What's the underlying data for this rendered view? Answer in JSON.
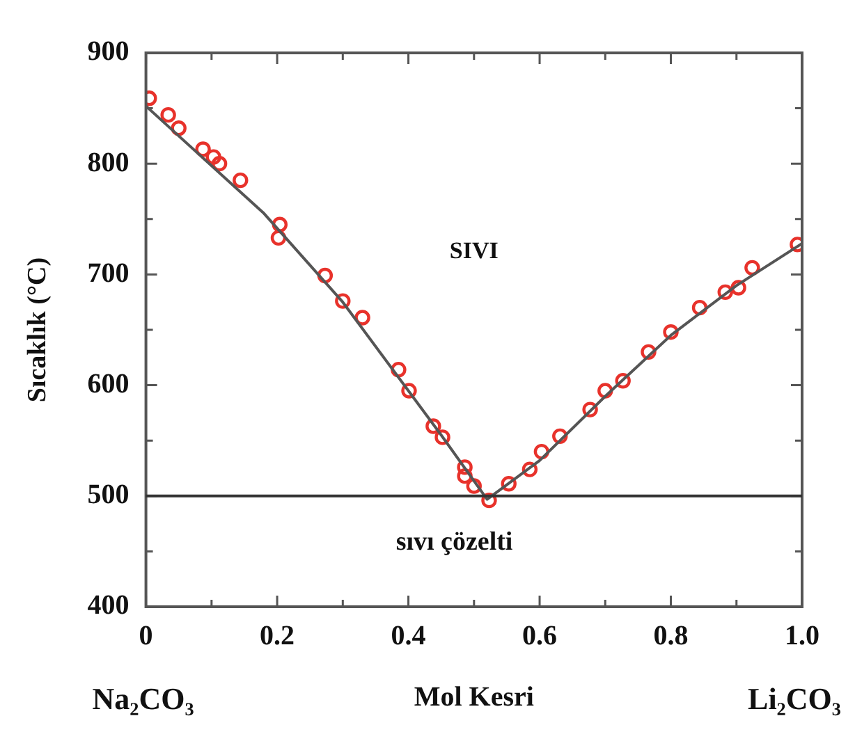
{
  "chart_data": {
    "type": "scatter",
    "xlabel": "Mol Kesri",
    "ylabel": "Sıcaklık (°C)",
    "annotations": [
      "SIVI",
      "sıvı çözelti",
      "Na₂CO₃",
      "Li₂CO₃"
    ],
    "xlim": [
      0,
      1
    ],
    "xticks": [
      0,
      {
        "value": 0.1,
        "label": null
      },
      0.2,
      {
        "value": 0.3,
        "label": null
      },
      0.4,
      {
        "value": 0.5,
        "label": null
      },
      0.6,
      {
        "value": 0.7,
        "label": null
      },
      0.8,
      {
        "value": 0.9,
        "label": null
      },
      {
        "value": 1,
        "label": "1.0"
      }
    ],
    "ylim": [
      400,
      900
    ],
    "yticks": [
      400,
      {
        "value": 450,
        "label": null
      },
      500,
      {
        "value": 550,
        "label": null
      },
      600,
      {
        "value": 650,
        "label": null
      },
      700,
      {
        "value": 750,
        "label": null
      },
      800,
      {
        "value": 850,
        "label": null
      },
      900
    ],
    "grid": false,
    "legend": false,
    "ref_lines": [
      {
        "axis": "y",
        "value": 500,
        "color": "#333333"
      }
    ],
    "series": [
      {
        "type": "line",
        "color": "#555555",
        "marker": "none",
        "x": [
          0,
          0.18,
          0.3,
          0.45,
          0.52,
          0.6,
          0.7,
          0.8,
          0.9,
          1
        ],
        "values": [
          852,
          755,
          675,
          555,
          497,
          532,
          590,
          645,
          690,
          728
        ]
      },
      {
        "type": "scatter",
        "color": "#e8322b",
        "marker": "circle",
        "x": [
          0.005,
          0.034,
          0.05,
          0.087,
          0.103,
          0.112,
          0.144,
          0.204,
          0.202,
          0.273,
          0.3,
          0.33,
          0.385,
          0.401,
          0.438,
          0.452,
          0.486,
          0.486,
          0.5,
          0.523,
          0.553,
          0.585,
          0.603,
          0.631,
          0.677,
          0.7,
          0.727,
          0.766,
          0.8,
          0.844,
          0.883,
          0.903,
          0.924,
          0.993
        ],
        "values": [
          859,
          844,
          832,
          813,
          806,
          800,
          785,
          745,
          733,
          699,
          676,
          661,
          614,
          595,
          563,
          553,
          526,
          518,
          509,
          496,
          511,
          524,
          540,
          554,
          578,
          595,
          604,
          630,
          648,
          670,
          684,
          688,
          706,
          727
        ]
      }
    ]
  }
}
